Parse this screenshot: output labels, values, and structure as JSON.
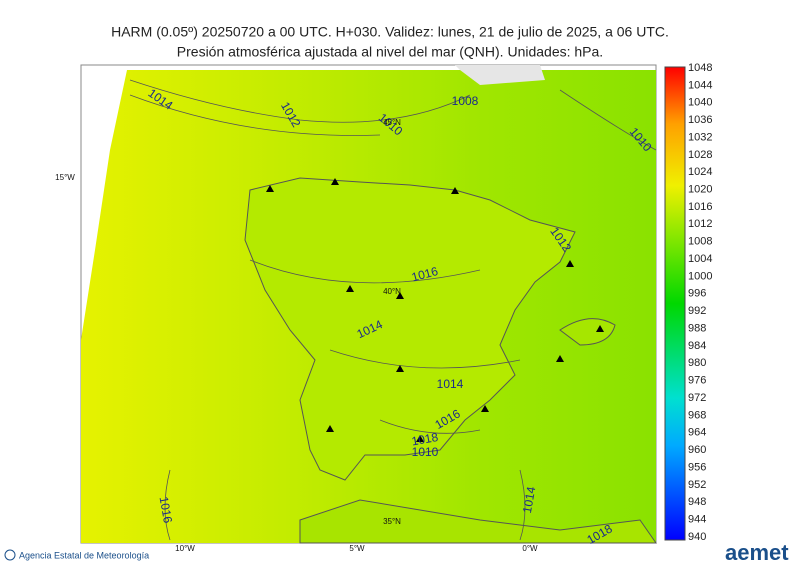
{
  "header": {
    "line1": "HARM (0.05º) 20250720 a 00 UTC. H+030. Validez: lunes, 21 de julio de 2025, a 06 UTC.",
    "line2": "Presión atmosférica ajustada al nivel del mar (QNH). Unidades: hPa."
  },
  "colorbar": {
    "labels": [
      1048,
      1044,
      1040,
      1036,
      1032,
      1028,
      1024,
      1020,
      1016,
      1012,
      1008,
      1004,
      1000,
      996,
      992,
      988,
      984,
      980,
      976,
      972,
      968,
      964,
      960,
      956,
      952,
      948,
      944,
      940
    ]
  },
  "map": {
    "contour_labels": [
      "1014",
      "1012",
      "1010",
      "1008",
      "1010",
      "1016",
      "1014",
      "1012",
      "1014",
      "1016",
      "1018",
      "1010",
      "1016",
      "1014",
      "1018"
    ],
    "grid_labels": [
      "15°W",
      "45°N",
      "40°N",
      "35°N",
      "10°W",
      "5°W",
      "0°W"
    ]
  },
  "footer": {
    "agency": "Agencia Estatal de Meteorología",
    "logo": "aemet"
  }
}
